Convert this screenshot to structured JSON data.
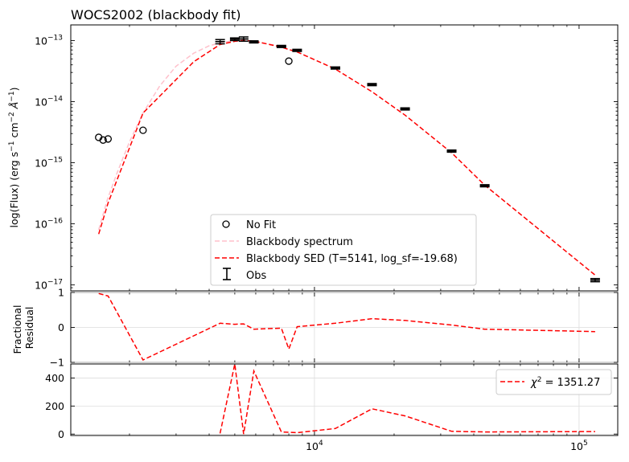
{
  "chart_data": [
    {
      "type": "scatter",
      "panel": "sed",
      "title": "WOCS2002 (blackbody fit)",
      "ylabel_parts": [
        "log(Flux) (erg s",
        "−1",
        " cm",
        "−2",
        " Å",
        "−1",
        ")"
      ],
      "xscale": "log",
      "yscale": "log",
      "xlim": [
        1200,
        140000
      ],
      "ylim": [
        8e-18,
        1.8e-13
      ],
      "xticks": [
        {
          "value": 10000,
          "label": "10",
          "exp": "4"
        },
        {
          "value": 100000,
          "label": "10",
          "exp": "5"
        }
      ],
      "yticks": [
        {
          "value": 1e-13,
          "label": "10",
          "exp": "−13"
        },
        {
          "value": 1e-14,
          "label": "10",
          "exp": "−14"
        },
        {
          "value": 1e-15,
          "label": "10",
          "exp": "−15"
        },
        {
          "value": 1e-16,
          "label": "10",
          "exp": "−16"
        },
        {
          "value": 1e-17,
          "label": "10",
          "exp": "−17"
        }
      ],
      "grid": false,
      "legend_position": "bottom-center",
      "series": [
        {
          "name": "No Fit",
          "kind": "open-circle",
          "color": "#000000",
          "x": [
            1530,
            1590,
            1660,
            2250,
            8000
          ],
          "y": [
            2.6e-15,
            2.35e-15,
            2.45e-15,
            3.4e-15,
            4.6e-14
          ]
        },
        {
          "name": "Blackbody spectrum",
          "kind": "line",
          "style": "dashed",
          "color": "#ffc0cb",
          "x": [
            1530,
            1650,
            1800,
            2000,
            2250,
            2600,
            3000,
            3500,
            4000,
            4500,
            5000,
            5500,
            6000,
            7000,
            8000,
            9000
          ],
          "y": [
            8e-17,
            2.5e-16,
            7e-16,
            2.2e-15,
            6.5e-15,
            1.8e-14,
            3.8e-14,
            6.2e-14,
            8.2e-14,
            9.4e-14,
            1e-13,
            1e-13,
            9.5e-14,
            8.5e-14,
            7.2e-14,
            6e-14
          ]
        },
        {
          "name": "Blackbody SED (T=5141, log_sf=-19.68)",
          "kind": "line",
          "style": "dashed",
          "color": "#ff0000",
          "x": [
            1530,
            1660,
            2250,
            3500,
            4400,
            5000,
            5400,
            5900,
            7500,
            8000,
            8600,
            12000,
            16500,
            22000,
            33000,
            44000,
            115000
          ],
          "y": [
            6.8e-17,
            2.2e-16,
            6.5e-15,
            4.5e-14,
            8.6e-14,
            9.7e-14,
            1e-13,
            9.8e-14,
            7.8e-14,
            7.1e-14,
            6.5e-14,
            3.4e-14,
            1.45e-14,
            6e-15,
            1.45e-15,
            4.3e-16,
            1.45e-17
          ]
        },
        {
          "name": "Obs",
          "kind": "errorbar",
          "color": "#000000",
          "x": [
            4400,
            5000,
            5400,
            5900,
            7500,
            8600,
            12000,
            16500,
            22000,
            33000,
            44000,
            115000
          ],
          "y": [
            9.6e-14,
            1.05e-13,
            1.06e-13,
            9.5e-14,
            8e-14,
            6.9e-14,
            3.55e-14,
            1.9e-14,
            7.6e-15,
            1.55e-15,
            4.2e-16,
            1.2e-17
          ],
          "yerr_frac": [
            0.08,
            0.05,
            0.08,
            0.04,
            0.04,
            0.04,
            0.04,
            0.04,
            0.04,
            0.04,
            0.04,
            0.06
          ]
        }
      ]
    },
    {
      "type": "line",
      "panel": "residual",
      "ylabel_lines": [
        "Fractional",
        "Residual"
      ],
      "xscale": "log",
      "xlim": [
        1200,
        140000
      ],
      "ylim": [
        -1,
        1
      ],
      "yticks": [
        1,
        0,
        -1
      ],
      "grid": true,
      "series": [
        {
          "name": "",
          "style": "dashed",
          "color": "#ff0000",
          "x": [
            1530,
            1660,
            2250,
            4400,
            5000,
            5400,
            5900,
            7500,
            8000,
            8600,
            12000,
            16500,
            22000,
            33000,
            44000,
            115000
          ],
          "y": [
            0.97,
            0.9,
            -0.93,
            0.12,
            0.09,
            0.1,
            -0.05,
            -0.02,
            -0.62,
            0.02,
            0.12,
            0.25,
            0.2,
            0.07,
            -0.05,
            -0.12
          ]
        }
      ]
    },
    {
      "type": "line",
      "panel": "chi2",
      "xscale": "log",
      "xlim": [
        1200,
        140000
      ],
      "ylim": [
        -10,
        500
      ],
      "yticks": [
        0,
        200,
        400
      ],
      "grid": true,
      "legend_position": "top-right",
      "series": [
        {
          "name": "χ",
          "name_exp": "2",
          "name_rest": " = 1351.27",
          "style": "dashed",
          "color": "#ff0000",
          "x": [
            4400,
            5000,
            5400,
            5900,
            7500,
            8600,
            12000,
            16500,
            22000,
            33000,
            44000,
            115000
          ],
          "y": [
            5,
            500,
            0,
            450,
            15,
            10,
            40,
            180,
            130,
            20,
            15,
            18
          ]
        }
      ]
    }
  ]
}
